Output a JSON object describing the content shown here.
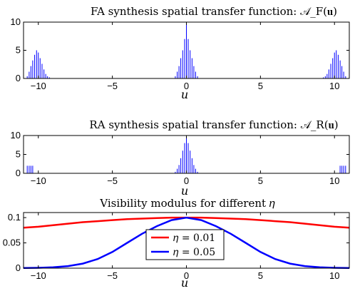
{
  "chart_data": [
    {
      "type": "bar",
      "title": "FA synthesis spatial transfer function: 𝒜_F(𝐮)",
      "xlabel": "u",
      "ylabel": "",
      "xlim": [
        -11,
        11
      ],
      "ylim": [
        0,
        10
      ],
      "xticks": [
        -10,
        -5,
        0,
        5,
        10
      ],
      "yticks": [
        0,
        5,
        10
      ],
      "xtick_labels": [
        "−10",
        "−5",
        "0",
        "5",
        "10"
      ],
      "ytick_labels": [
        "0",
        "5",
        "10"
      ],
      "bar_color": "#0000ff",
      "grid": false,
      "x": [
        -10.75,
        -10.62,
        -10.5,
        -10.38,
        -10.25,
        -10.12,
        -10.0,
        -9.88,
        -9.75,
        -9.62,
        -9.5,
        -9.38,
        -9.25,
        -0.75,
        -0.62,
        -0.5,
        -0.38,
        -0.25,
        -0.12,
        0.0,
        0.12,
        0.25,
        0.38,
        0.5,
        0.62,
        0.75,
        9.25,
        9.38,
        9.5,
        9.62,
        9.75,
        9.88,
        10.0,
        10.12,
        10.25,
        10.38,
        10.5,
        10.62,
        10.75
      ],
      "values": [
        0.4,
        1.2,
        2.2,
        3.2,
        4.2,
        5.0,
        4.6,
        3.6,
        2.6,
        1.6,
        0.8,
        0.4,
        0.2,
        0.4,
        1.2,
        2.2,
        3.6,
        5.0,
        7.0,
        10.0,
        7.0,
        5.0,
        3.6,
        2.2,
        1.2,
        0.4,
        0.2,
        0.4,
        0.8,
        1.6,
        2.6,
        3.6,
        4.6,
        5.0,
        4.2,
        3.2,
        2.2,
        1.2,
        0.4
      ]
    },
    {
      "type": "bar",
      "title": "RA synthesis spatial transfer function: 𝒜_R(𝐮)",
      "xlabel": "u",
      "ylabel": "",
      "xlim": [
        -11,
        11
      ],
      "ylim": [
        0,
        10
      ],
      "xticks": [
        -10,
        -5,
        0,
        5,
        10
      ],
      "yticks": [
        0,
        5,
        10
      ],
      "xtick_labels": [
        "−10",
        "−5",
        "0",
        "5",
        "10"
      ],
      "ytick_labels": [
        "0",
        "5",
        "10"
      ],
      "bar_color": "#0000ff",
      "grid": false,
      "x": [
        -10.75,
        -10.62,
        -10.5,
        -10.38,
        -0.75,
        -0.62,
        -0.5,
        -0.38,
        -0.25,
        -0.12,
        0.0,
        0.12,
        0.25,
        0.38,
        0.5,
        0.62,
        0.75,
        10.38,
        10.5,
        10.62,
        10.75
      ],
      "values": [
        2,
        2,
        2,
        2,
        0.4,
        1.2,
        2.2,
        4.0,
        6.0,
        8.0,
        10.0,
        8.0,
        6.0,
        4.0,
        2.2,
        1.2,
        0.4,
        2,
        2,
        2,
        2
      ]
    },
    {
      "type": "line",
      "title": "Visibility modulus for different 𝜂",
      "xlabel": "u",
      "ylabel": "",
      "xlim": [
        -11,
        11
      ],
      "ylim": [
        0,
        0.11
      ],
      "xticks": [
        -10,
        -5,
        0,
        5,
        10
      ],
      "yticks": [
        0,
        0.05,
        0.1
      ],
      "xtick_labels": [
        "−10",
        "−5",
        "0",
        "5",
        "10"
      ],
      "ytick_labels": [
        "0",
        "0.05",
        "0.1"
      ],
      "grid": false,
      "legend_position": "center",
      "series": [
        {
          "name": "𝜂 = 0.01",
          "color": "#ff0000",
          "x": [
            -11,
            -10,
            -9,
            -8,
            -7,
            -6,
            -5,
            -4,
            -3,
            -2,
            -1,
            0,
            1,
            2,
            3,
            4,
            5,
            6,
            7,
            8,
            9,
            10,
            11
          ],
          "values": [
            0.08,
            0.082,
            0.085,
            0.088,
            0.091,
            0.093,
            0.095,
            0.097,
            0.098,
            0.099,
            0.1,
            0.1,
            0.1,
            0.099,
            0.098,
            0.097,
            0.095,
            0.093,
            0.091,
            0.088,
            0.085,
            0.082,
            0.08
          ]
        },
        {
          "name": "𝜂 = 0.05",
          "color": "#0000ff",
          "x": [
            -11,
            -10,
            -9,
            -8,
            -7,
            -6,
            -5,
            -4,
            -3,
            -2,
            -1,
            0,
            1,
            2,
            3,
            4,
            5,
            6,
            7,
            8,
            9,
            10,
            11
          ],
          "values": [
            0.0003,
            0.0007,
            0.0017,
            0.0041,
            0.009,
            0.018,
            0.032,
            0.05,
            0.068,
            0.083,
            0.095,
            0.1,
            0.095,
            0.083,
            0.068,
            0.05,
            0.032,
            0.018,
            0.009,
            0.0041,
            0.0017,
            0.0007,
            0.0003
          ]
        }
      ]
    }
  ]
}
